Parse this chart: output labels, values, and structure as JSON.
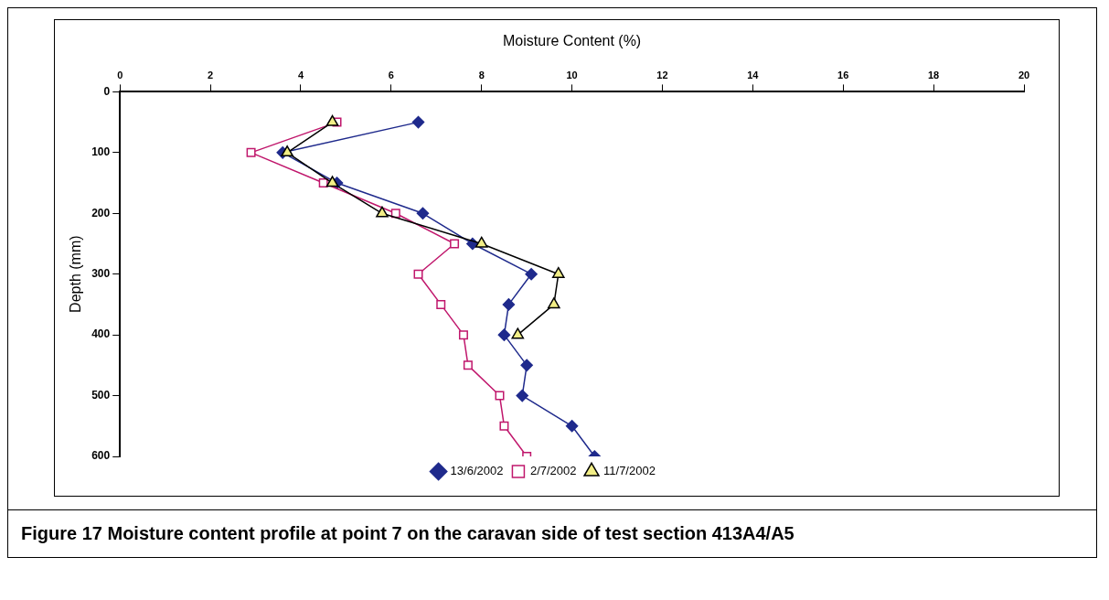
{
  "chart_data": {
    "type": "line",
    "xlabel": "Moisture Content (%)",
    "ylabel": "Depth (mm)",
    "xlim": [
      0,
      20
    ],
    "xticks": [
      0,
      2,
      4,
      6,
      8,
      10,
      12,
      14,
      16,
      18,
      20
    ],
    "ylim": [
      600,
      0
    ],
    "yticks": [
      0,
      100,
      200,
      300,
      400,
      500,
      600
    ],
    "grid": false,
    "legend": "bottom",
    "annotations": [
      "Figure 17  Moisture content profile at point 7 on the caravan side of test section 413A4/A5"
    ],
    "series": [
      {
        "name": "13/6/2002",
        "color": "#1f2a8c",
        "marker": "diamond",
        "x": [
          6.6,
          3.6,
          4.8,
          6.7,
          7.8,
          9.1,
          8.6,
          8.5,
          9.0,
          8.9,
          10.0,
          10.5
        ],
        "values": [
          50,
          100,
          150,
          200,
          250,
          300,
          350,
          400,
          450,
          500,
          550,
          600
        ]
      },
      {
        "name": "2/7/2002",
        "color": "#c0176c",
        "marker": "square",
        "x": [
          4.8,
          2.9,
          4.5,
          6.1,
          7.4,
          6.6,
          7.1,
          7.6,
          7.7,
          8.4,
          8.5,
          9.0
        ],
        "values": [
          50,
          100,
          150,
          200,
          250,
          300,
          350,
          400,
          450,
          500,
          550,
          600
        ]
      },
      {
        "name": "11/7/2002",
        "color": "#000000",
        "marker": "triangle",
        "x": [
          4.7,
          3.7,
          4.7,
          5.8,
          8.0,
          9.7,
          9.6,
          8.8
        ],
        "values": [
          50,
          100,
          150,
          200,
          250,
          300,
          350,
          400
        ]
      }
    ]
  }
}
